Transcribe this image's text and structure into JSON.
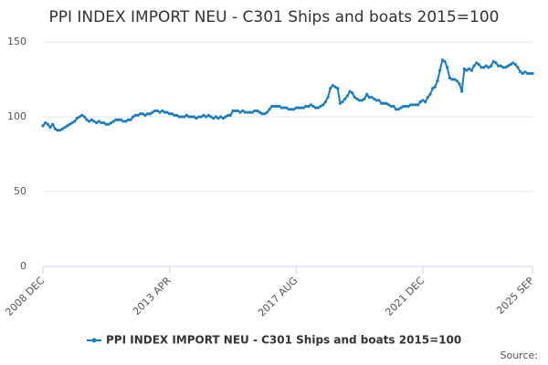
{
  "chart_data": {
    "type": "line",
    "title": "PPI INDEX IMPORT NEU - C301 Ships and boats 2015=100",
    "source": "Source:",
    "categories": [
      "2008 DEC",
      null,
      null,
      null,
      null,
      null,
      null,
      null,
      null,
      null,
      null,
      null,
      null,
      null,
      null,
      null,
      null,
      null,
      null,
      null,
      null,
      null,
      null,
      null,
      null,
      null,
      null,
      null,
      null,
      null,
      null,
      null,
      null,
      null,
      null,
      null,
      null,
      null,
      null,
      null,
      null,
      null,
      null,
      null,
      null,
      null,
      null,
      null,
      null,
      null,
      null,
      null,
      "2013 APR",
      null,
      null,
      null,
      null,
      null,
      null,
      null,
      null,
      null,
      null,
      null,
      null,
      null,
      null,
      null,
      null,
      null,
      null,
      null,
      null,
      null,
      null,
      null,
      null,
      null,
      null,
      null,
      null,
      null,
      null,
      null,
      null,
      null,
      null,
      null,
      null,
      null,
      null,
      null,
      null,
      null,
      null,
      null,
      null,
      null,
      null,
      null,
      null,
      null,
      null,
      null,
      "2017 AUG",
      null,
      null,
      null,
      null,
      null,
      null,
      null,
      null,
      null,
      null,
      null,
      null,
      null,
      null,
      null,
      null,
      null,
      null,
      null,
      null,
      null,
      null,
      null,
      null,
      null,
      null,
      null,
      null,
      null,
      null,
      null,
      null,
      null,
      null,
      null,
      null,
      null,
      null,
      null,
      null,
      null,
      null,
      null,
      null,
      null,
      null,
      null,
      null,
      null,
      null,
      null,
      "2021 DEC",
      null,
      null,
      null,
      null,
      null,
      null,
      null,
      null,
      null,
      null,
      null,
      null,
      null,
      null,
      null,
      null,
      null,
      null,
      null,
      null,
      null,
      null,
      null,
      null,
      null,
      null,
      null,
      null,
      null,
      null,
      null,
      null,
      null,
      null,
      null,
      null,
      null,
      null,
      null,
      null,
      null,
      null,
      null,
      null,
      "2025 SEP"
    ],
    "series": [
      {
        "name": "PPI INDEX IMPORT NEU - C301 Ships and boats 2015=100",
        "color": "#1a7dbf",
        "values": [
          94,
          96,
          95,
          93,
          95,
          92,
          91,
          91,
          92,
          93,
          94,
          95,
          96,
          97,
          99,
          100,
          101,
          100,
          98,
          97,
          98,
          97,
          96,
          97,
          96,
          96,
          95,
          95,
          96,
          97,
          98,
          98,
          98,
          97,
          97,
          98,
          98,
          100,
          101,
          101,
          102,
          102,
          101,
          102,
          102,
          103,
          104,
          104,
          103,
          104,
          103,
          103,
          102,
          102,
          101,
          101,
          100,
          100,
          100,
          101,
          100,
          100,
          100,
          99,
          100,
          100,
          101,
          100,
          101,
          100,
          99,
          100,
          99,
          100,
          99,
          100,
          101,
          101,
          104,
          104,
          104,
          103,
          104,
          103,
          103,
          103,
          103,
          104,
          104,
          103,
          102,
          102,
          103,
          105,
          107,
          107,
          107,
          107,
          106,
          106,
          106,
          105,
          105,
          105,
          106,
          106,
          106,
          106,
          107,
          107,
          108,
          107,
          106,
          106,
          107,
          108,
          110,
          113,
          119,
          121,
          120,
          119,
          109,
          110,
          112,
          114,
          117,
          116,
          113,
          112,
          111,
          111,
          112,
          115,
          113,
          113,
          112,
          111,
          111,
          109,
          109,
          109,
          108,
          107,
          107,
          105,
          105,
          106,
          107,
          107,
          107,
          108,
          108,
          108,
          108,
          110,
          111,
          110,
          113,
          115,
          119,
          120,
          124,
          131,
          138,
          137,
          133,
          126,
          125,
          125,
          124,
          122,
          117,
          132,
          131,
          132,
          131,
          134,
          136,
          135,
          133,
          133,
          134,
          133,
          134,
          137,
          136,
          134,
          134,
          133,
          133,
          134,
          135,
          136,
          135,
          133,
          130,
          129,
          130,
          129,
          129,
          129
        ]
      }
    ],
    "ylim": [
      0,
      150
    ],
    "yticks": [
      0,
      50,
      100,
      150
    ],
    "grid": true,
    "legend": "bottom"
  }
}
